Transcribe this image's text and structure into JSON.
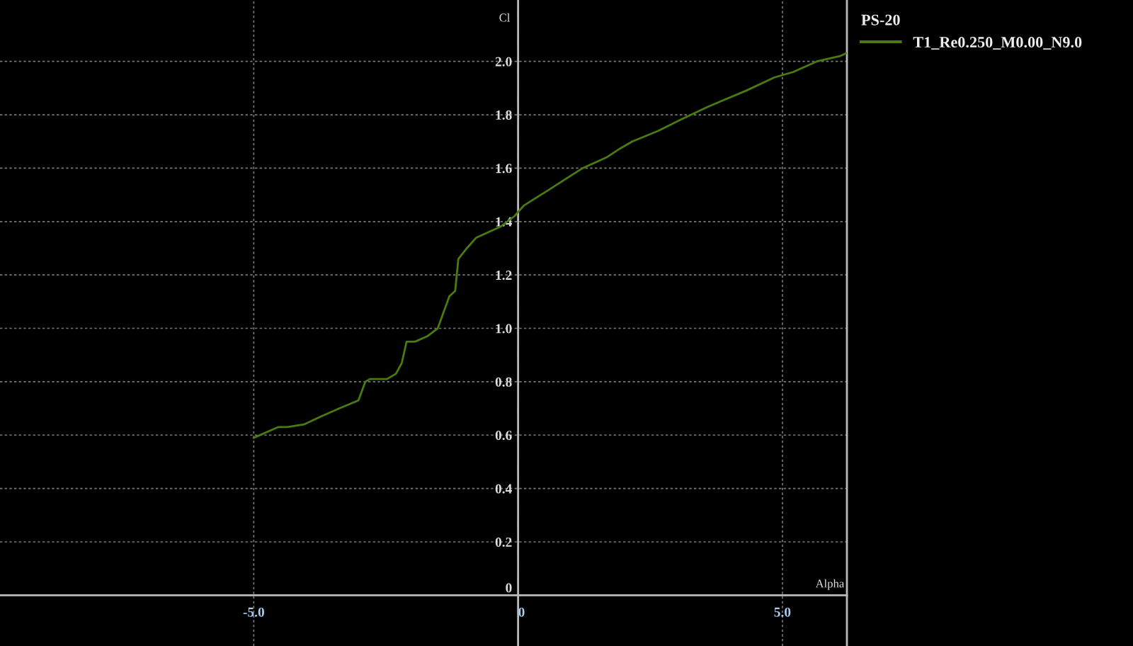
{
  "chart_data": {
    "type": "line",
    "xlabel": "Alpha",
    "ylabel": "Cl",
    "legend_title": "PS-20",
    "x": [
      -5.0,
      -4.54,
      -4.36,
      -4.05,
      -3.73,
      -3.38,
      -3.02,
      -2.89,
      -2.8,
      -2.48,
      -2.31,
      -2.2,
      -2.11,
      -1.95,
      -1.72,
      -1.52,
      -1.3,
      -1.19,
      -1.13,
      -0.97,
      -0.79,
      -0.34,
      -0.07,
      0.11,
      0.51,
      1.22,
      1.67,
      1.9,
      2.16,
      2.65,
      3.06,
      3.59,
      4.31,
      4.85,
      5.2,
      5.65,
      6.09,
      6.2
    ],
    "series": [
      {
        "name": "T1_Re0.250_M0.00_N9.0",
        "color": "#4a7a10",
        "values": [
          0.59,
          0.63,
          0.63,
          0.64,
          0.67,
          0.7,
          0.73,
          0.8,
          0.81,
          0.81,
          0.83,
          0.87,
          0.95,
          0.95,
          0.97,
          1.0,
          1.12,
          1.14,
          1.26,
          1.3,
          1.34,
          1.38,
          1.42,
          1.46,
          1.51,
          1.6,
          1.64,
          1.67,
          1.7,
          1.74,
          1.78,
          1.83,
          1.89,
          1.94,
          1.96,
          2.0,
          2.02,
          2.03
        ]
      }
    ],
    "xlim": [
      -9.8,
      6.22
    ],
    "ylim": [
      -0.19,
      2.23
    ],
    "xticks": [
      {
        "value": -5,
        "label": "-5.0"
      },
      0,
      {
        "value": 5,
        "label": "5.0"
      }
    ],
    "yticks": [
      0,
      0.2,
      0.4,
      0.6,
      0.8,
      {
        "value": 1,
        "label": "1.0"
      },
      1.2,
      1.4,
      1.6,
      1.8,
      {
        "value": 2,
        "label": "2.0"
      }
    ],
    "grid": true,
    "legend": "top right",
    "line_style": "solid",
    "marker": "none"
  }
}
